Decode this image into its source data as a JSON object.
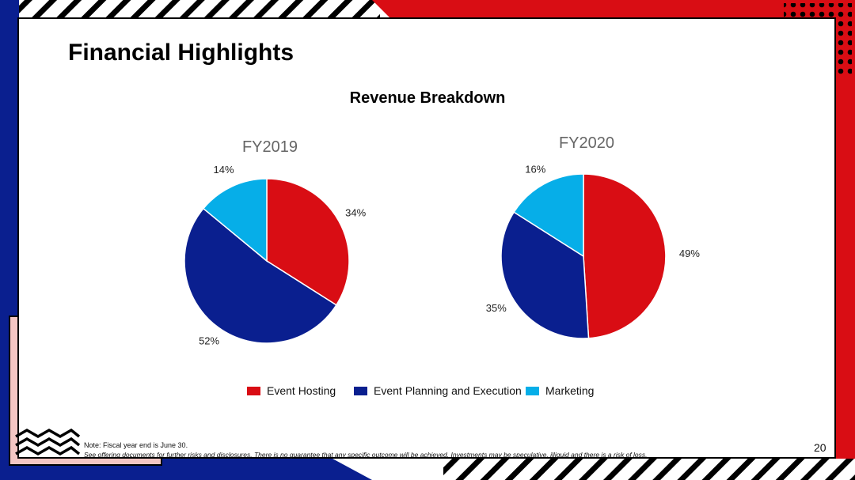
{
  "slide": {
    "title": "Financial Highlights",
    "note": "Note: Fiscal year end is June 30.",
    "disclaimer": "See offering documents for further risks and disclosures. There is no guarantee that any specific outcome will be achieved. Investments may be speculative, illiquid and there is a risk of loss.",
    "page_number": "20"
  },
  "colors": {
    "red": "#d90d14",
    "navy": "#0a1f8f",
    "cyan": "#06aee8",
    "blush": "#f4c6c3"
  },
  "chart_data": [
    {
      "type": "pie",
      "title": "Revenue Breakdown",
      "subtitle": "FY2019",
      "categories": [
        "Event Hosting",
        "Event Planning and Execution",
        "Marketing"
      ],
      "values": [
        34,
        52,
        14
      ],
      "labels": [
        "34%",
        "52%",
        "14%"
      ],
      "legend": "bottom"
    },
    {
      "type": "pie",
      "title": "Revenue Breakdown",
      "subtitle": "FY2020",
      "categories": [
        "Event Hosting",
        "Event Planning and Execution",
        "Marketing"
      ],
      "values": [
        49,
        35,
        16
      ],
      "labels": [
        "49%",
        "35%",
        "16%"
      ],
      "legend": "bottom"
    }
  ]
}
